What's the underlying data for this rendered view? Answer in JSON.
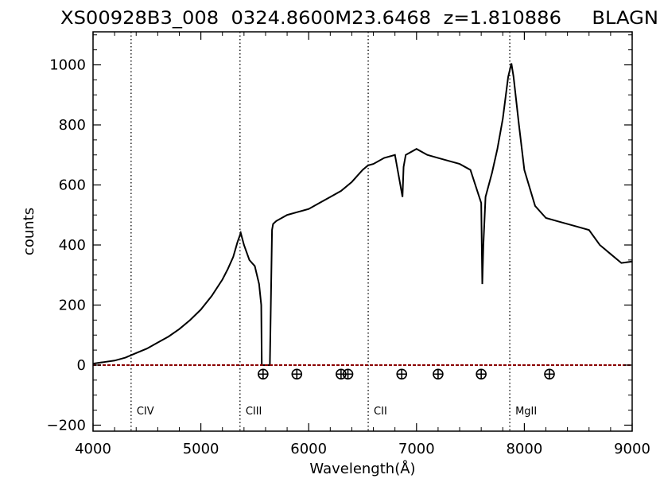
{
  "chart_data": {
    "type": "line",
    "title": "XS00928B3_008  0324.8600M23.6468  z=1.810886     BLAGN",
    "xlabel": "Wavelength(Å)",
    "ylabel": "counts",
    "xlim": [
      4000,
      9000
    ],
    "ylim": [
      -220,
      1110
    ],
    "xticks": [
      4000,
      5000,
      6000,
      7000,
      8000,
      9000
    ],
    "yticks": [
      -200,
      0,
      200,
      400,
      600,
      800,
      1000
    ],
    "grid": false,
    "series": [
      {
        "color": "#000000",
        "x": [
          4000,
          4100,
          4200,
          4300,
          4400,
          4500,
          4600,
          4700,
          4800,
          4900,
          5000,
          5100,
          5200,
          5250,
          5300,
          5340,
          5370,
          5400,
          5450,
          5500,
          5540,
          5560,
          5565,
          5640,
          5660,
          5670,
          5700,
          5800,
          5900,
          6000,
          6100,
          6200,
          6300,
          6400,
          6500,
          6550,
          6600,
          6700,
          6800,
          6850,
          6870,
          6880,
          6900,
          7000,
          7100,
          7200,
          7300,
          7400,
          7500,
          7600,
          7610,
          7620,
          7640,
          7700,
          7750,
          7800,
          7850,
          7880,
          7900,
          7950,
          8000,
          8100,
          8200,
          8300,
          8400,
          8500,
          8600,
          8700,
          8800,
          8900,
          9000
        ],
        "y": [
          5,
          10,
          15,
          25,
          40,
          55,
          75,
          95,
          120,
          150,
          185,
          230,
          285,
          320,
          360,
          410,
          440,
          400,
          350,
          330,
          270,
          200,
          0,
          0,
          450,
          470,
          480,
          500,
          510,
          520,
          540,
          560,
          580,
          610,
          650,
          665,
          670,
          690,
          700,
          600,
          560,
          660,
          700,
          720,
          700,
          690,
          680,
          670,
          650,
          540,
          270,
          400,
          560,
          640,
          720,
          820,
          960,
          1005,
          960,
          800,
          650,
          530,
          490,
          480,
          470,
          460,
          450,
          400,
          370,
          340,
          345
        ]
      },
      {
        "color": "#8b0000",
        "x": [
          4000,
          9000
        ],
        "y": [
          0,
          0
        ]
      }
    ],
    "lines": [
      {
        "x": 4353,
        "label": "CIV"
      },
      {
        "x": 5363,
        "label": "CIII"
      },
      {
        "x": 6552,
        "label": "CII"
      },
      {
        "x": 7865,
        "label": "MgII"
      }
    ],
    "markers_x": [
      5577,
      5890,
      6300,
      6364,
      6863,
      7200,
      7600,
      8233
    ],
    "markers_y": -30
  }
}
